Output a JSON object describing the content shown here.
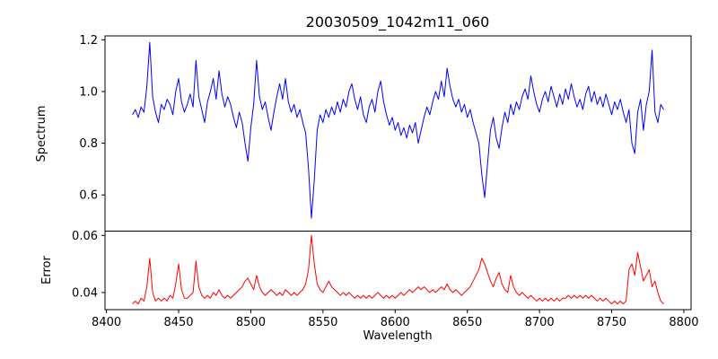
{
  "figure": {
    "title": "20030509_1042m11_060",
    "xlabel": "Wavelength",
    "ylabel_top": "Spectrum",
    "ylabel_bottom": "Error"
  },
  "chart_data": {
    "type": "line",
    "title": "20030509_1042m11_060",
    "xlabel": "Wavelength",
    "x_start": 8418,
    "x_step": 2,
    "xlim": [
      8399,
      8805
    ],
    "xtick_values": [
      8400,
      8450,
      8500,
      8550,
      8600,
      8650,
      8700,
      8750,
      8800
    ],
    "xtick_labels": [
      "8400",
      "8450",
      "8500",
      "8550",
      "8600",
      "8650",
      "8700",
      "8750",
      "8800"
    ],
    "grid": false,
    "legend": "none",
    "panels": [
      {
        "name": "spectrum",
        "ylabel": "Spectrum",
        "color": "#0000ff",
        "ylim": [
          0.46,
          1.215
        ],
        "ytick_values": [
          0.6,
          0.8,
          1.0,
          1.2
        ],
        "ytick_labels": [
          "0.6",
          "0.8",
          "1.0",
          "1.2"
        ],
        "values": [
          0.91,
          0.93,
          0.9,
          0.94,
          0.92,
          1.02,
          1.19,
          0.98,
          0.92,
          0.88,
          0.95,
          0.93,
          0.97,
          0.95,
          0.91,
          1.0,
          1.05,
          0.96,
          0.92,
          0.95,
          0.99,
          0.94,
          1.12,
          0.98,
          0.93,
          0.88,
          0.96,
          1.0,
          1.05,
          0.97,
          1.08,
          0.99,
          0.94,
          0.98,
          0.95,
          0.9,
          0.86,
          0.92,
          0.88,
          0.8,
          0.73,
          0.86,
          0.95,
          1.12,
          0.98,
          0.93,
          0.96,
          0.9,
          0.85,
          0.92,
          0.98,
          1.03,
          0.97,
          1.05,
          0.96,
          0.92,
          0.95,
          0.9,
          0.93,
          0.88,
          0.84,
          0.7,
          0.51,
          0.66,
          0.85,
          0.91,
          0.88,
          0.93,
          0.9,
          0.94,
          0.91,
          0.96,
          0.92,
          0.97,
          0.94,
          1.0,
          1.03,
          0.97,
          0.93,
          0.98,
          0.91,
          0.88,
          0.94,
          0.97,
          0.92,
          1.0,
          1.04,
          0.96,
          0.91,
          0.87,
          0.9,
          0.85,
          0.88,
          0.83,
          0.86,
          0.82,
          0.87,
          0.84,
          0.88,
          0.8,
          0.85,
          0.9,
          0.94,
          0.91,
          0.96,
          1.0,
          0.97,
          1.04,
          0.98,
          1.09,
          1.02,
          0.97,
          0.94,
          0.97,
          0.92,
          0.95,
          0.9,
          0.93,
          0.88,
          0.84,
          0.8,
          0.68,
          0.59,
          0.72,
          0.85,
          0.9,
          0.82,
          0.78,
          0.86,
          0.92,
          0.88,
          0.95,
          0.91,
          0.96,
          0.93,
          0.98,
          1.01,
          0.97,
          1.06,
          1.0,
          0.95,
          0.92,
          0.97,
          1.0,
          0.96,
          1.02,
          0.98,
          0.94,
          0.99,
          0.95,
          1.01,
          0.97,
          1.03,
          0.98,
          0.94,
          0.97,
          0.93,
          0.99,
          1.02,
          0.96,
          1.0,
          0.95,
          0.98,
          0.94,
          0.99,
          0.95,
          0.91,
          0.96,
          0.93,
          0.97,
          0.92,
          0.88,
          0.93,
          0.8,
          0.76,
          0.92,
          0.97,
          0.85,
          0.95,
          1.0,
          1.16,
          0.92,
          0.88,
          0.95,
          0.93
        ]
      },
      {
        "name": "error",
        "ylabel": "Error",
        "color": "#ff0000",
        "ylim": [
          0.034,
          0.0615
        ],
        "ytick_values": [
          0.04,
          0.06
        ],
        "ytick_labels": [
          "0.04",
          "0.06"
        ],
        "values": [
          0.036,
          0.037,
          0.036,
          0.038,
          0.037,
          0.042,
          0.052,
          0.04,
          0.037,
          0.038,
          0.037,
          0.038,
          0.037,
          0.039,
          0.038,
          0.043,
          0.05,
          0.041,
          0.038,
          0.038,
          0.039,
          0.04,
          0.051,
          0.042,
          0.039,
          0.038,
          0.039,
          0.038,
          0.04,
          0.039,
          0.041,
          0.039,
          0.038,
          0.039,
          0.038,
          0.039,
          0.04,
          0.041,
          0.042,
          0.044,
          0.045,
          0.043,
          0.041,
          0.046,
          0.042,
          0.04,
          0.039,
          0.04,
          0.041,
          0.04,
          0.039,
          0.04,
          0.039,
          0.041,
          0.04,
          0.039,
          0.04,
          0.039,
          0.04,
          0.041,
          0.043,
          0.048,
          0.06,
          0.05,
          0.043,
          0.041,
          0.04,
          0.042,
          0.044,
          0.042,
          0.041,
          0.04,
          0.039,
          0.04,
          0.039,
          0.04,
          0.039,
          0.038,
          0.039,
          0.038,
          0.039,
          0.038,
          0.039,
          0.038,
          0.039,
          0.04,
          0.039,
          0.038,
          0.039,
          0.038,
          0.039,
          0.038,
          0.039,
          0.04,
          0.039,
          0.04,
          0.041,
          0.04,
          0.041,
          0.042,
          0.041,
          0.042,
          0.041,
          0.04,
          0.041,
          0.04,
          0.041,
          0.042,
          0.041,
          0.043,
          0.041,
          0.04,
          0.041,
          0.04,
          0.039,
          0.04,
          0.041,
          0.042,
          0.044,
          0.046,
          0.048,
          0.052,
          0.05,
          0.047,
          0.044,
          0.042,
          0.045,
          0.047,
          0.043,
          0.041,
          0.04,
          0.046,
          0.042,
          0.04,
          0.039,
          0.04,
          0.039,
          0.038,
          0.039,
          0.038,
          0.037,
          0.038,
          0.037,
          0.038,
          0.037,
          0.038,
          0.037,
          0.038,
          0.037,
          0.038,
          0.038,
          0.039,
          0.038,
          0.039,
          0.038,
          0.039,
          0.038,
          0.039,
          0.038,
          0.039,
          0.038,
          0.037,
          0.038,
          0.037,
          0.038,
          0.037,
          0.036,
          0.037,
          0.036,
          0.037,
          0.036,
          0.037,
          0.048,
          0.05,
          0.046,
          0.054,
          0.049,
          0.044,
          0.046,
          0.048,
          0.042,
          0.044,
          0.04,
          0.037,
          0.036
        ]
      }
    ]
  }
}
